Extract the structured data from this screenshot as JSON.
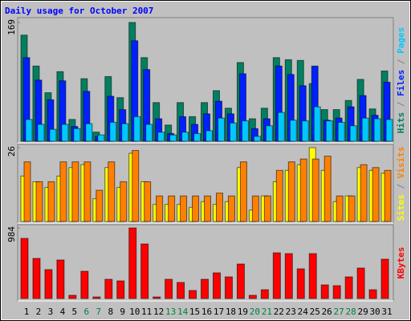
{
  "title": "Daily usage for October 2007",
  "chart_data": [
    {
      "type": "bar",
      "ylim": [
        0,
        169
      ],
      "yticks": [
        169
      ],
      "series": [
        {
          "name": "Hits",
          "color": "#008060",
          "values": [
            151,
            107,
            69,
            99,
            31,
            89,
            13,
            92,
            62,
            169,
            119,
            55,
            23,
            55,
            35,
            55,
            72,
            47,
            112,
            32,
            47,
            119,
            116,
            115,
            82,
            45,
            45,
            58,
            88,
            46,
            100
          ]
        },
        {
          "name": "Files",
          "color": "#0020ff",
          "values": [
            119,
            87,
            59,
            86,
            21,
            71,
            7,
            64,
            45,
            143,
            102,
            32,
            11,
            35,
            24,
            39,
            57,
            39,
            96,
            18,
            32,
            107,
            95,
            79,
            107,
            30,
            33,
            49,
            65,
            37,
            84
          ]
        },
        {
          "name": "Pages",
          "color": "#00c8ff",
          "values": [
            31,
            24,
            17,
            24,
            18,
            25,
            9,
            27,
            25,
            35,
            24,
            13,
            9,
            13,
            11,
            15,
            33,
            26,
            29,
            7,
            22,
            41,
            30,
            29,
            49,
            29,
            27,
            22,
            33,
            32,
            31
          ]
        }
      ]
    },
    {
      "type": "bar",
      "ylim": [
        0,
        26
      ],
      "yticks": [
        26
      ],
      "series": [
        {
          "name": "Sites",
          "color": "#ffff00",
          "values": [
            16,
            14,
            12,
            16,
            19,
            20,
            8,
            19,
            12,
            24,
            14,
            6,
            6,
            6,
            5,
            7,
            6,
            7,
            19,
            4,
            9,
            14,
            18,
            20,
            26,
            18,
            7,
            9,
            19,
            18,
            17
          ]
        },
        {
          "name": "Visits",
          "color": "#ff8000",
          "values": [
            21,
            14,
            14,
            21,
            21,
            21,
            11,
            21,
            14,
            25,
            14,
            9,
            9,
            9,
            9,
            9,
            10,
            9,
            21,
            9,
            9,
            18,
            21,
            22,
            22,
            23,
            9,
            9,
            20,
            19,
            18
          ]
        }
      ]
    },
    {
      "type": "bar",
      "ylim": [
        0,
        984
      ],
      "yticks": [
        984
      ],
      "categories": [
        "1",
        "2",
        "3",
        "4",
        "5",
        "6",
        "7",
        "8",
        "9",
        "10",
        "11",
        "12",
        "13",
        "14",
        "15",
        "16",
        "17",
        "18",
        "19",
        "20",
        "21",
        "22",
        "23",
        "24",
        "25",
        "26",
        "27",
        "28",
        "29",
        "30",
        "31"
      ],
      "label_colors": [
        "#000",
        "#000",
        "#000",
        "#000",
        "#000",
        "#008040",
        "#008040",
        "#000",
        "#000",
        "#000",
        "#000",
        "#000",
        "#008040",
        "#008040",
        "#000",
        "#000",
        "#000",
        "#000",
        "#000",
        "#008040",
        "#008040",
        "#000",
        "#000",
        "#000",
        "#000",
        "#000",
        "#008040",
        "#008040",
        "#000",
        "#000",
        "#000"
      ],
      "series": [
        {
          "name": "KBytes",
          "color": "#ff0000",
          "values": [
            838,
            559,
            403,
            537,
            45,
            380,
            22,
            268,
            246,
            984,
            760,
            22,
            268,
            224,
            112,
            268,
            358,
            302,
            481,
            45,
            123,
            637,
            626,
            414,
            626,
            190,
            179,
            302,
            425,
            123,
            548
          ]
        }
      ]
    }
  ]
}
